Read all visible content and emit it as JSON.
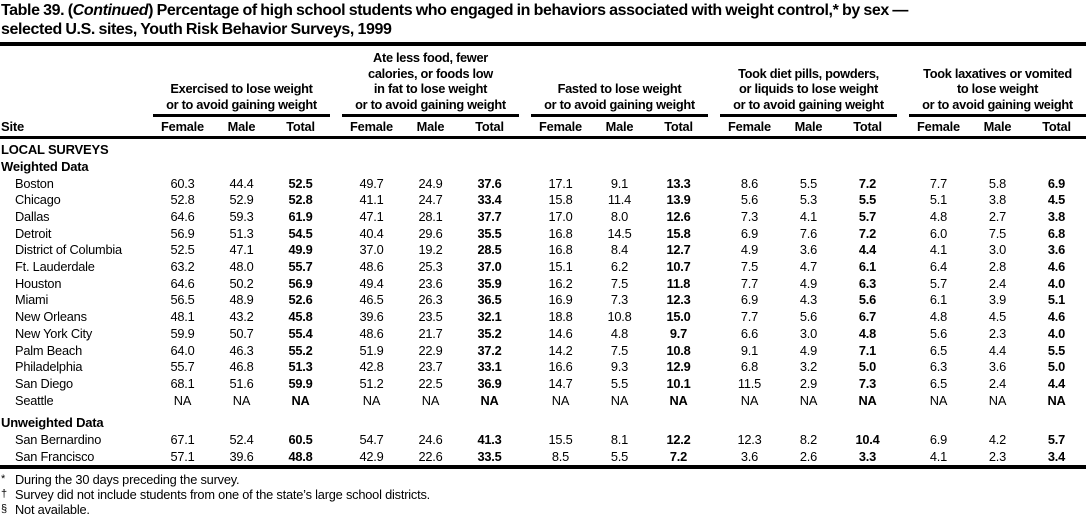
{
  "title": {
    "line1_prefix": "Table 39. (",
    "line1_continued": "Continued",
    "line1_rest": ") Percentage of high school students who engaged in behaviors associated with weight control,* by sex —",
    "line2": "selected U.S. sites, Youth Risk Behavior Surveys, 1999"
  },
  "table": {
    "site_header": "Site",
    "sub_headers": [
      "Female",
      "Male",
      "Total"
    ],
    "groups": [
      {
        "label": "Exercised to lose weight\nor to avoid gaining weight"
      },
      {
        "label": "Ate less food, fewer\ncalories, or foods low\nin fat to lose weight\nor to avoid gaining weight"
      },
      {
        "label": "Fasted to lose weight\nor to avoid gaining weight"
      },
      {
        "label": "Took diet pills, powders,\nor liquids to lose weight\nor to avoid gaining weight"
      },
      {
        "label": "Took laxatives or vomited\nto lose weight\nor to avoid gaining weight"
      }
    ],
    "sections": [
      {
        "heading": "LOCAL SURVEYS",
        "rows": []
      },
      {
        "heading": "Weighted Data",
        "rows": [
          {
            "site": "Boston",
            "values": [
              "60.3",
              "44.4",
              "52.5",
              "49.7",
              "24.9",
              "37.6",
              "17.1",
              "9.1",
              "13.3",
              "8.6",
              "5.5",
              "7.2",
              "7.7",
              "5.8",
              "6.9"
            ]
          },
          {
            "site": "Chicago",
            "values": [
              "52.8",
              "52.9",
              "52.8",
              "41.1",
              "24.7",
              "33.4",
              "15.8",
              "11.4",
              "13.9",
              "5.6",
              "5.3",
              "5.5",
              "5.1",
              "3.8",
              "4.5"
            ]
          },
          {
            "site": "Dallas",
            "values": [
              "64.6",
              "59.3",
              "61.9",
              "47.1",
              "28.1",
              "37.7",
              "17.0",
              "8.0",
              "12.6",
              "7.3",
              "4.1",
              "5.7",
              "4.8",
              "2.7",
              "3.8"
            ]
          },
          {
            "site": "Detroit",
            "values": [
              "56.9",
              "51.3",
              "54.5",
              "40.4",
              "29.6",
              "35.5",
              "16.8",
              "14.5",
              "15.8",
              "6.9",
              "7.6",
              "7.2",
              "6.0",
              "7.5",
              "6.8"
            ]
          },
          {
            "site": "District of Columbia",
            "values": [
              "52.5",
              "47.1",
              "49.9",
              "37.0",
              "19.2",
              "28.5",
              "16.8",
              "8.4",
              "12.7",
              "4.9",
              "3.6",
              "4.4",
              "4.1",
              "3.0",
              "3.6"
            ]
          },
          {
            "site": "Ft. Lauderdale",
            "values": [
              "63.2",
              "48.0",
              "55.7",
              "48.6",
              "25.3",
              "37.0",
              "15.1",
              "6.2",
              "10.7",
              "7.5",
              "4.7",
              "6.1",
              "6.4",
              "2.8",
              "4.6"
            ]
          },
          {
            "site": "Houston",
            "values": [
              "64.6",
              "50.2",
              "56.9",
              "49.4",
              "23.6",
              "35.9",
              "16.2",
              "7.5",
              "11.8",
              "7.7",
              "4.9",
              "6.3",
              "5.7",
              "2.4",
              "4.0"
            ]
          },
          {
            "site": "Miami",
            "values": [
              "56.5",
              "48.9",
              "52.6",
              "46.5",
              "26.3",
              "36.5",
              "16.9",
              "7.3",
              "12.3",
              "6.9",
              "4.3",
              "5.6",
              "6.1",
              "3.9",
              "5.1"
            ]
          },
          {
            "site": "New Orleans",
            "values": [
              "48.1",
              "43.2",
              "45.8",
              "39.6",
              "23.5",
              "32.1",
              "18.8",
              "10.8",
              "15.0",
              "7.7",
              "5.6",
              "6.7",
              "4.8",
              "4.5",
              "4.6"
            ]
          },
          {
            "site": "New York City",
            "values": [
              "59.9",
              "50.7",
              "55.4",
              "48.6",
              "21.7",
              "35.2",
              "14.6",
              "4.8",
              "9.7",
              "6.6",
              "3.0",
              "4.8",
              "5.6",
              "2.3",
              "4.0"
            ]
          },
          {
            "site": "Palm Beach",
            "values": [
              "64.0",
              "46.3",
              "55.2",
              "51.9",
              "22.9",
              "37.2",
              "14.2",
              "7.5",
              "10.8",
              "9.1",
              "4.9",
              "7.1",
              "6.5",
              "4.4",
              "5.5"
            ]
          },
          {
            "site": "Philadelphia",
            "values": [
              "55.7",
              "46.8",
              "51.3",
              "42.8",
              "23.7",
              "33.1",
              "16.6",
              "9.3",
              "12.9",
              "6.8",
              "3.2",
              "5.0",
              "6.3",
              "3.6",
              "5.0"
            ]
          },
          {
            "site": "San Diego",
            "values": [
              "68.1",
              "51.6",
              "59.9",
              "51.2",
              "22.5",
              "36.9",
              "14.7",
              "5.5",
              "10.1",
              "11.5",
              "2.9",
              "7.3",
              "6.5",
              "2.4",
              "4.4"
            ]
          },
          {
            "site": "Seattle",
            "values": [
              "NA",
              "NA",
              "NA",
              "NA",
              "NA",
              "NA",
              "NA",
              "NA",
              "NA",
              "NA",
              "NA",
              "NA",
              "NA",
              "NA",
              "NA"
            ]
          }
        ]
      },
      {
        "heading": "Unweighted Data",
        "gap_before": true,
        "rows": [
          {
            "site": "San Bernardino",
            "values": [
              "67.1",
              "52.4",
              "60.5",
              "54.7",
              "24.6",
              "41.3",
              "15.5",
              "8.1",
              "12.2",
              "12.3",
              "8.2",
              "10.4",
              "6.9",
              "4.2",
              "5.7"
            ]
          },
          {
            "site": "San Francisco",
            "values": [
              "57.1",
              "39.6",
              "48.8",
              "42.9",
              "22.6",
              "33.5",
              "8.5",
              "5.5",
              "7.2",
              "3.6",
              "2.6",
              "3.3",
              "4.1",
              "2.3",
              "3.4"
            ]
          }
        ]
      }
    ]
  },
  "footnotes": [
    {
      "symbol": "*",
      "text": "During the 30 days preceding the survey."
    },
    {
      "symbol": "†",
      "text": "Survey did not include students from one of the state’s large school districts."
    },
    {
      "symbol": "§",
      "text": "Not available."
    }
  ]
}
